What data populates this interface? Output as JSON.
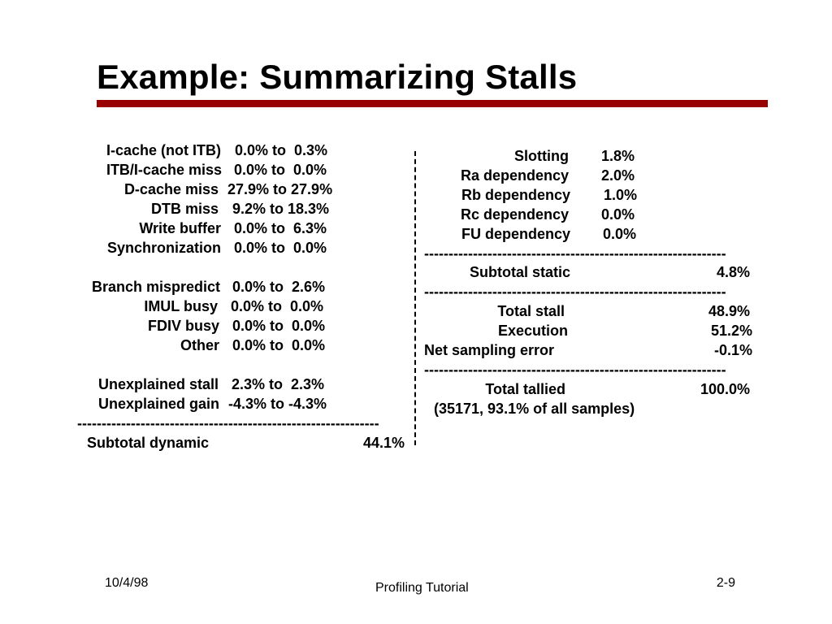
{
  "slide": {
    "title": "Example: Summarizing Stalls",
    "accent_color": "#990000"
  },
  "left_block": {
    "rows": [
      {
        "label": "I-cache (not ITB)",
        "value": "0.0% to  0.3%"
      },
      {
        "label": "ITB/I-cache miss",
        "value": "0.0% to  0.0%"
      },
      {
        "label": "D-cache miss",
        "value": "27.9% to 27.9%"
      },
      {
        "label": "DTB miss",
        "value": "9.2% to 18.3%"
      },
      {
        "label": "Write buffer",
        "value": "0.0% to  6.3%"
      },
      {
        "label": "Synchronization",
        "value": "0.0% to  0.0%"
      },
      {
        "label": "Branch mispredict",
        "value": "0.0% to  2.6%"
      },
      {
        "label": "IMUL busy",
        "value": "0.0% to  0.0%"
      },
      {
        "label": "FDIV busy",
        "value": "0.0% to  0.0%"
      },
      {
        "label": "Other",
        "value": "0.0% to  0.0%"
      },
      {
        "label": "Unexplained stall",
        "value": "2.3% to  2.3%"
      },
      {
        "label": "Unexplained gain",
        "value": "-4.3% to -4.3%"
      }
    ],
    "separator": "--------------------------------------------------------------",
    "subtotal": {
      "label": "Subtotal dynamic",
      "value": "44.1%"
    }
  },
  "right_block": {
    "static_rows": [
      {
        "label": "Slotting",
        "value": "1.8%"
      },
      {
        "label": "Ra dependency",
        "value": "2.0%"
      },
      {
        "label": "Rb dependency",
        "value": "1.0%"
      },
      {
        "label": "Rc dependency",
        "value": "0.0%"
      },
      {
        "label": "FU dependency",
        "value": "0.0%"
      }
    ],
    "separator": "--------------------------------------------------------------",
    "subtotal_static": {
      "label": "Subtotal static",
      "value": "4.8%"
    },
    "totals": [
      {
        "label": "Total stall",
        "value": "48.9%"
      },
      {
        "label": "Execution",
        "value": "51.2%"
      },
      {
        "label": "Net sampling error",
        "value": "-0.1%"
      }
    ],
    "total_tallied": {
      "label": "Total tallied",
      "value": "100.0%"
    },
    "note": "(35171, 93.1% of all samples)"
  },
  "footer": {
    "date": "10/4/98",
    "center": "Profiling Tutorial",
    "page": "2-9"
  }
}
